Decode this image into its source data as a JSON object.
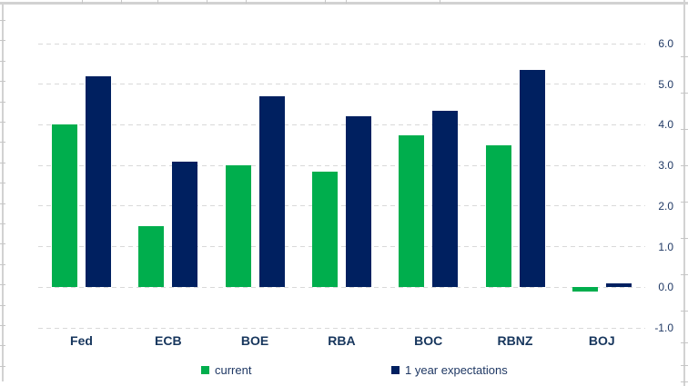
{
  "chart_data": {
    "type": "bar",
    "title": "",
    "xlabel": "",
    "ylabel": "",
    "categories": [
      "Fed",
      "ECB",
      "BOE",
      "RBA",
      "BOC",
      "RBNZ",
      "BOJ"
    ],
    "series": [
      {
        "name": "current",
        "color": "#00AE4D",
        "values": [
          4.0,
          1.5,
          3.0,
          2.85,
          3.75,
          3.5,
          -0.1
        ]
      },
      {
        "name": "1 year expectations",
        "color": "#002060",
        "values": [
          5.2,
          3.1,
          4.7,
          4.2,
          4.35,
          5.35,
          0.1
        ]
      }
    ],
    "ylim": [
      -1.0,
      6.0
    ],
    "yticks": [
      6.0,
      5.0,
      4.0,
      3.0,
      2.0,
      1.0,
      0.0,
      -1.0
    ],
    "ytick_labels": [
      "6.0",
      "5.0",
      "4.0",
      "3.0",
      "2.0",
      "1.0",
      "0.0",
      "-1.0"
    ],
    "y_axis_side": "right",
    "grid": "horizontal-dashed",
    "legend_position": "bottom"
  },
  "colors": {
    "series_current": "#00AE4D",
    "series_expectations": "#002060",
    "axis_text": "#1F3864",
    "category_text": "#17365D",
    "gridline": "#D9D9D9",
    "frame": "#D2D2D2",
    "background": "#FFFFFF"
  }
}
